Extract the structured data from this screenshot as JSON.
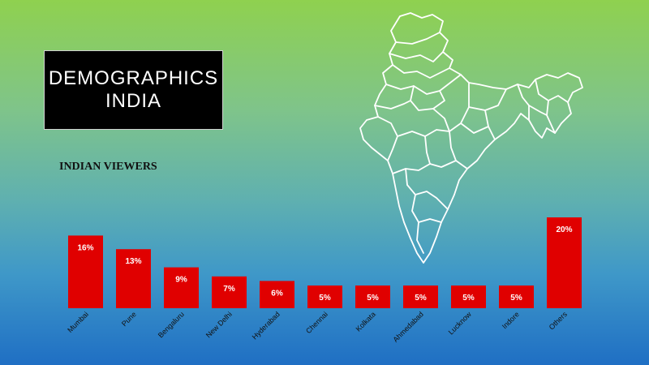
{
  "banner": {
    "line1": "DEMOGRAPHICS",
    "line2": "INDIA"
  },
  "map": {
    "icon": "india-map-outline-icon",
    "stroke_color": "#ffffff"
  },
  "chart_data": {
    "type": "bar",
    "title": "INDIAN VIEWERS",
    "xlabel": "",
    "ylabel": "",
    "categories": [
      "Mumbai",
      "Pune",
      "Bengaluru",
      "New Delhi",
      "Hyderabad",
      "Chennai",
      "Kolkata",
      "Ahmedabad",
      "Lucknow",
      "Indore",
      "Others"
    ],
    "values": [
      16,
      13,
      9,
      7,
      6,
      5,
      5,
      5,
      5,
      5,
      20
    ],
    "data_labels": [
      "16%",
      "13%",
      "9%",
      "7%",
      "6%",
      "5%",
      "5%",
      "5%",
      "5%",
      "5%",
      "20%"
    ],
    "unit": "%",
    "bar_color": "#e00000",
    "grid": false,
    "legend": "none"
  }
}
